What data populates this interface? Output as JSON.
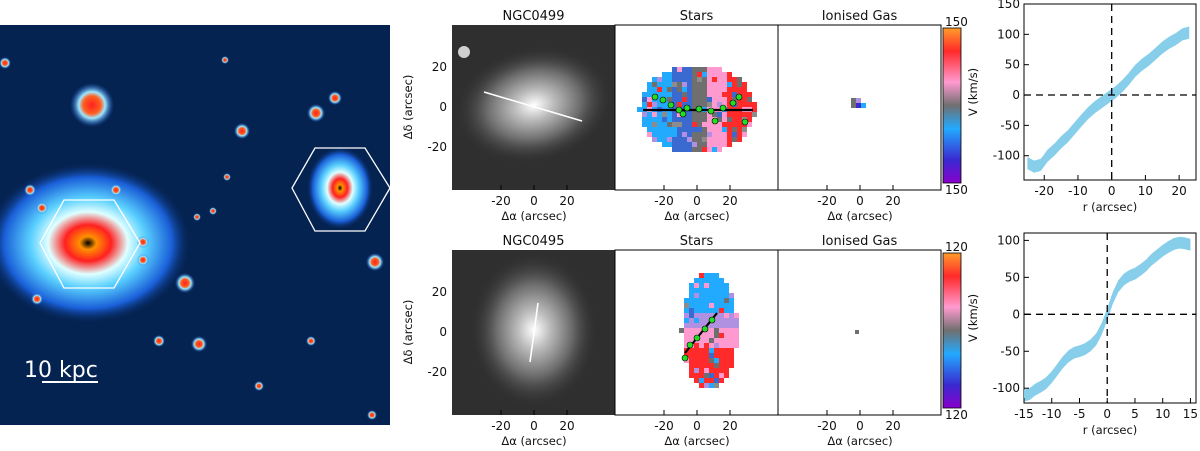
{
  "scale_bar_label": "10 kpc",
  "colors": {
    "sky": "#001a40",
    "halo": "#5ad0ff",
    "core": "#ff2020",
    "band": "#87ceeb",
    "hexagon": "#ffffff"
  },
  "galaxies": [
    {
      "name": "NGC0499",
      "titles": [
        "NGC0499",
        "Stars",
        "Ionised Gas"
      ],
      "xlabel": "Δα (arcsec)",
      "ylabel": "Δδ (arcsec)",
      "xticks": [
        "-20",
        "0",
        "20"
      ],
      "yticks": [
        "20",
        "0",
        "-20"
      ],
      "colorbar": {
        "top": "150",
        "bottom": "150"
      }
    },
    {
      "name": "NGC0495",
      "titles": [
        "NGC0495",
        "Stars",
        "Ionised Gas"
      ],
      "xlabel": "Δα (arcsec)",
      "ylabel": "Δδ (arcsec)",
      "xticks": [
        "-20",
        "0",
        "20"
      ],
      "yticks": [
        "20",
        "0",
        "-20"
      ],
      "colorbar": {
        "top": "120",
        "bottom": "120"
      }
    }
  ],
  "chart_data": [
    {
      "type": "area",
      "galaxy": "NGC0499",
      "xlabel": "r (arcsec)",
      "ylabel": "V (km/s)",
      "xlim": [
        -26,
        25
      ],
      "ylim": [
        -140,
        150
      ],
      "xticks": [
        -20,
        -10,
        0,
        10,
        20
      ],
      "yticks": [
        -100,
        -50,
        0,
        50,
        100,
        150
      ],
      "x": [
        -25,
        -23,
        -21,
        -19,
        -17,
        -15,
        -13,
        -11,
        -9,
        -7,
        -5,
        -3,
        -1,
        1,
        3,
        5,
        7,
        9,
        11,
        13,
        15,
        17,
        19,
        21,
        23
      ],
      "y": [
        -112,
        -118,
        -115,
        -100,
        -90,
        -78,
        -68,
        -55,
        -42,
        -30,
        -20,
        -12,
        -4,
        4,
        14,
        26,
        40,
        50,
        58,
        68,
        78,
        86,
        92,
        100,
        103
      ],
      "band_halfwidth": 10
    },
    {
      "type": "area",
      "galaxy": "NGC0495",
      "xlabel": "r (arcsec)",
      "ylabel": "V (km/s)",
      "xlim": [
        -15,
        16
      ],
      "ylim": [
        -120,
        110
      ],
      "xticks": [
        -15,
        -10,
        -5,
        0,
        5,
        10,
        15
      ],
      "yticks": [
        -100,
        -50,
        0,
        50,
        100
      ],
      "x": [
        -15,
        -14,
        -13,
        -12,
        -11,
        -10,
        -9,
        -8,
        -7,
        -6,
        -5,
        -4,
        -3,
        -2,
        -1,
        0,
        1,
        2,
        3,
        4,
        5,
        6,
        7,
        8,
        9,
        10,
        11,
        12,
        13,
        14,
        15
      ],
      "y": [
        -110,
        -108,
        -102,
        -98,
        -93,
        -85,
        -75,
        -65,
        -57,
        -52,
        -50,
        -47,
        -42,
        -34,
        -20,
        0,
        22,
        38,
        47,
        52,
        55,
        60,
        66,
        74,
        80,
        86,
        91,
        95,
        97,
        96,
        94
      ],
      "band_halfwidth": 8
    }
  ]
}
